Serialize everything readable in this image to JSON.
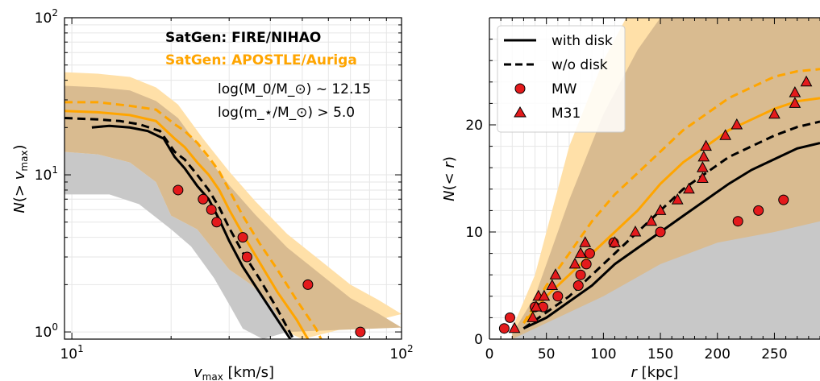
{
  "colors": {
    "fire": "#000000",
    "apostle": "#ffa500",
    "fire_band": "#c8c8c8",
    "apostle_band": "#ffe0a8",
    "overlap_band": "#d9bb90",
    "marker_fill": "#e41a1c"
  },
  "chart_data": [
    {
      "type": "line",
      "xlabel": "v_max [km/s]",
      "ylabel": "N(> v_max)",
      "xscale": "log",
      "yscale": "log",
      "xlim": [
        9.5,
        100
      ],
      "ylim": [
        0.9,
        100
      ],
      "xticks": [
        {
          "value": 10,
          "label": "10^1"
        },
        {
          "value": 100,
          "label": "10^2"
        }
      ],
      "yticks": [
        {
          "value": 1,
          "label": "10^0"
        },
        {
          "value": 10,
          "label": "10^1"
        },
        {
          "value": 100,
          "label": "10^2"
        }
      ],
      "grid": true,
      "annotations": [
        {
          "text": "SatGen: FIRE/NIHAO",
          "color": "#000000"
        },
        {
          "text": "SatGen: APOSTLE/Auriga",
          "color": "#ffa500"
        },
        {
          "text": "log(M_0/M_⊙) ~ 12.15",
          "color": "#000000"
        },
        {
          "text": "log(m_⋆/M_⊙) > 5.0",
          "color": "#000000"
        }
      ],
      "bands": [
        {
          "group": "FIRE/NIHAO",
          "lower": [
            [
              9.5,
              7.5
            ],
            [
              13,
              7.5
            ],
            [
              16,
              6.5
            ],
            [
              20,
              4.5
            ],
            [
              23,
              3.5
            ],
            [
              27,
              2.2
            ],
            [
              30,
              1.5
            ],
            [
              33,
              1.05
            ],
            [
              38,
              0.9
            ]
          ],
          "upper": [
            [
              9.5,
              14
            ],
            [
              12,
              13.5
            ],
            [
              15,
              12
            ],
            [
              18,
              9
            ],
            [
              20,
              5.5
            ],
            [
              24,
              4.5
            ],
            [
              30,
              2.5
            ],
            [
              35,
              2
            ],
            [
              40,
              1.5
            ],
            [
              45,
              1
            ]
          ]
        },
        {
          "group": "APOSTLE/Auriga",
          "lower": [
            [
              9.5,
              14
            ],
            [
              12,
              13.5
            ],
            [
              15,
              12
            ],
            [
              18,
              9
            ],
            [
              20,
              5.5
            ],
            [
              24,
              4.5
            ],
            [
              30,
              2.5
            ],
            [
              35,
              2
            ],
            [
              40,
              1.5
            ],
            [
              45,
              1
            ],
            [
              50,
              0.9
            ]
          ],
          "upper": [
            [
              9.5,
              45
            ],
            [
              12,
              44
            ],
            [
              15,
              42
            ],
            [
              18,
              36
            ],
            [
              21,
              28
            ],
            [
              25,
              17
            ],
            [
              30,
              10.5
            ],
            [
              36,
              6.8
            ],
            [
              45,
              4.2
            ],
            [
              55,
              3
            ],
            [
              70,
              2
            ],
            [
              85,
              1.6
            ],
            [
              100,
              1.3
            ]
          ]
        }
      ],
      "series": [
        {
          "name": "",
          "group": "FIRE/NIHAO",
          "variant": "with disk",
          "points": [
            [
              11.5,
              20
            ],
            [
              13,
              20.5
            ],
            [
              15,
              20
            ],
            [
              17,
              19
            ],
            [
              19,
              17
            ],
            [
              20.5,
              13
            ],
            [
              22,
              11
            ],
            [
              24,
              8.5
            ],
            [
              26,
              7
            ],
            [
              28,
              5.2
            ],
            [
              30,
              3.8
            ],
            [
              33,
              2.6
            ],
            [
              37,
              1.8
            ],
            [
              42,
              1.2
            ],
            [
              46,
              0.9
            ]
          ]
        },
        {
          "name": "",
          "group": "FIRE/NIHAO",
          "variant": "w/o disk",
          "points": [
            [
              9.5,
              23
            ],
            [
              12,
              22.5
            ],
            [
              14,
              22
            ],
            [
              16,
              21
            ],
            [
              18.5,
              19
            ],
            [
              20.5,
              14
            ],
            [
              22,
              12.5
            ],
            [
              24,
              10
            ],
            [
              26,
              8
            ],
            [
              28,
              6.2
            ],
            [
              30,
              4.6
            ],
            [
              33,
              3.2
            ],
            [
              37,
              2.2
            ],
            [
              42,
              1.4
            ],
            [
              47,
              0.9
            ]
          ]
        },
        {
          "name": "",
          "group": "APOSTLE/Auriga",
          "variant": "with disk",
          "points": [
            [
              9.5,
              25.5
            ],
            [
              12,
              25
            ],
            [
              15,
              24
            ],
            [
              18,
              22
            ],
            [
              20.5,
              17
            ],
            [
              22,
              15
            ],
            [
              24,
              12
            ],
            [
              26,
              10
            ],
            [
              28,
              8
            ],
            [
              30,
              6
            ],
            [
              33,
              4.2
            ],
            [
              37,
              2.8
            ],
            [
              42,
              1.8
            ],
            [
              48,
              1.2
            ],
            [
              52,
              0.9
            ]
          ]
        },
        {
          "name": "",
          "group": "APOSTLE/Auriga",
          "variant": "w/o disk",
          "points": [
            [
              9.5,
              29
            ],
            [
              12,
              29
            ],
            [
              15,
              27.5
            ],
            [
              18,
              26
            ],
            [
              20.5,
              21
            ],
            [
              22,
              19
            ],
            [
              24,
              16
            ],
            [
              26,
              13
            ],
            [
              28,
              10.5
            ],
            [
              30,
              8
            ],
            [
              33,
              5.5
            ],
            [
              37,
              3.7
            ],
            [
              42,
              2.5
            ],
            [
              48,
              1.6
            ],
            [
              55,
              1.05
            ],
            [
              57,
              0.9
            ]
          ]
        }
      ],
      "markers": [
        {
          "name": "MW",
          "points": [
            [
              21,
              8
            ],
            [
              25,
              7
            ],
            [
              26.5,
              6
            ],
            [
              27.5,
              5
            ],
            [
              33,
              4
            ],
            [
              34,
              3
            ],
            [
              52,
              2
            ],
            [
              75,
              1
            ]
          ]
        }
      ]
    },
    {
      "type": "line",
      "xlabel": "r [kpc]",
      "ylabel": "N(< r)",
      "xlim": [
        0,
        290
      ],
      "ylim": [
        0,
        30
      ],
      "xticks": [
        0,
        50,
        100,
        150,
        200,
        250
      ],
      "yticks": [
        0,
        10,
        20
      ],
      "grid": true,
      "legend": {
        "position": "top-left",
        "entries": [
          "with disk",
          "w/o disk",
          "MW",
          "M31"
        ]
      },
      "bands": [
        {
          "group": "FIRE/NIHAO",
          "lower": [
            [
              20,
              0
            ],
            [
              290,
              0
            ]
          ],
          "upper": [
            [
              20,
              0
            ],
            [
              50,
              1.5
            ],
            [
              100,
              4
            ],
            [
              150,
              7
            ],
            [
              200,
              9
            ],
            [
              250,
              10
            ],
            [
              290,
              11
            ]
          ]
        },
        {
          "group": "APOSTLE/Auriga",
          "lower": [
            [
              20,
              0
            ],
            [
              290,
              0
            ]
          ],
          "upper": [
            [
              20,
              1
            ],
            [
              40,
              6
            ],
            [
              70,
              18
            ],
            [
              100,
              26
            ],
            [
              120,
              30
            ],
            [
              290,
              30
            ]
          ]
        }
      ],
      "series": [
        {
          "name": "",
          "group": "FIRE/NIHAO",
          "variant": "with disk",
          "points": [
            [
              30,
              1
            ],
            [
              50,
              2
            ],
            [
              70,
              3.5
            ],
            [
              90,
              5
            ],
            [
              110,
              7
            ],
            [
              130,
              8.5
            ],
            [
              150,
              10
            ],
            [
              170,
              11.5
            ],
            [
              190,
              13
            ],
            [
              210,
              14.5
            ],
            [
              230,
              15.8
            ],
            [
              250,
              16.8
            ],
            [
              270,
              17.8
            ],
            [
              290,
              18.3
            ]
          ]
        },
        {
          "name": "",
          "group": "FIRE/NIHAO",
          "variant": "w/o disk",
          "points": [
            [
              30,
              1
            ],
            [
              50,
              2.5
            ],
            [
              70,
              4
            ],
            [
              90,
              6
            ],
            [
              110,
              8
            ],
            [
              130,
              10
            ],
            [
              150,
              12
            ],
            [
              170,
              14
            ],
            [
              190,
              15.5
            ],
            [
              210,
              17
            ],
            [
              230,
              18
            ],
            [
              250,
              19
            ],
            [
              270,
              19.8
            ],
            [
              290,
              20.3
            ]
          ]
        },
        {
          "name": "",
          "group": "APOSTLE/Auriga",
          "variant": "with disk",
          "points": [
            [
              30,
              1.5
            ],
            [
              50,
              4
            ],
            [
              70,
              6
            ],
            [
              90,
              8
            ],
            [
              110,
              10
            ],
            [
              130,
              12
            ],
            [
              150,
              14.5
            ],
            [
              170,
              16.5
            ],
            [
              190,
              18
            ],
            [
              210,
              19.5
            ],
            [
              230,
              20.5
            ],
            [
              250,
              21.5
            ],
            [
              270,
              22.2
            ],
            [
              290,
              22.5
            ]
          ]
        },
        {
          "name": "",
          "group": "APOSTLE/Auriga",
          "variant": "w/o disk",
          "points": [
            [
              30,
              1.5
            ],
            [
              50,
              5
            ],
            [
              70,
              8
            ],
            [
              90,
              11
            ],
            [
              110,
              13.5
            ],
            [
              130,
              15.5
            ],
            [
              150,
              17.5
            ],
            [
              170,
              19.5
            ],
            [
              190,
              21
            ],
            [
              210,
              22.5
            ],
            [
              230,
              23.5
            ],
            [
              250,
              24.5
            ],
            [
              270,
              25
            ],
            [
              290,
              25.2
            ]
          ]
        }
      ],
      "markers": [
        {
          "name": "MW",
          "points": [
            [
              13,
              1
            ],
            [
              18,
              2
            ],
            [
              40,
              3
            ],
            [
              47,
              3
            ],
            [
              60,
              4
            ],
            [
              78,
              5
            ],
            [
              80,
              6
            ],
            [
              85,
              7
            ],
            [
              88,
              8
            ],
            [
              109,
              9
            ],
            [
              150,
              10
            ],
            [
              218,
              11
            ],
            [
              236,
              12
            ],
            [
              258,
              13
            ]
          ]
        },
        {
          "name": "M31",
          "points": [
            [
              22,
              1
            ],
            [
              38,
              2
            ],
            [
              41,
              3
            ],
            [
              43,
              4
            ],
            [
              48,
              4
            ],
            [
              55,
              5
            ],
            [
              58,
              6
            ],
            [
              75,
              7
            ],
            [
              80,
              8
            ],
            [
              84,
              9
            ],
            [
              110,
              9
            ],
            [
              128,
              10
            ],
            [
              142,
              11
            ],
            [
              150,
              12
            ],
            [
              165,
              13
            ],
            [
              175,
              14
            ],
            [
              187,
              15
            ],
            [
              187,
              16
            ],
            [
              188,
              17
            ],
            [
              190,
              18
            ],
            [
              207,
              19
            ],
            [
              217,
              20
            ],
            [
              250,
              21
            ],
            [
              268,
              22
            ],
            [
              268,
              23
            ],
            [
              278,
              24
            ]
          ]
        }
      ]
    }
  ]
}
